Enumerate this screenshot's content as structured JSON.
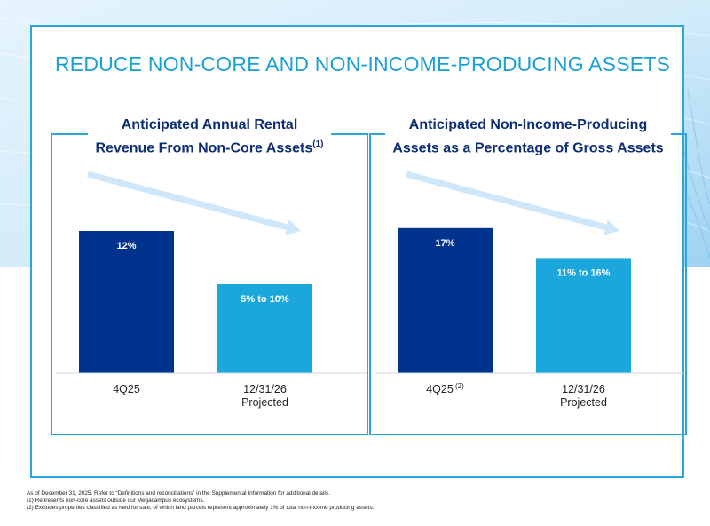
{
  "title": "REDUCE NON-CORE AND NON-INCOME-PRODUCING ASSETS",
  "colors": {
    "accent": "#29a8d8",
    "dark_bar": "#00338d",
    "light_bar": "#1ba6dc",
    "arrow": "#cfe7f8",
    "heading": "#0f2f74"
  },
  "chart_data": [
    {
      "type": "bar",
      "title_lines": [
        "Anticipated Annual Rental",
        "Revenue From Non-Core Assets"
      ],
      "title_superscript": "(1)",
      "categories": [
        {
          "lines": [
            "4Q25"
          ],
          "superscript": ""
        },
        {
          "lines": [
            "12/31/26",
            "Projected"
          ],
          "superscript": ""
        }
      ],
      "values": [
        12,
        7.5
      ],
      "data_labels": [
        "12%",
        "5% to 10%"
      ],
      "ylim": [
        0,
        18
      ],
      "grid": false,
      "trend_arrow": "down"
    },
    {
      "type": "bar",
      "title_lines": [
        "Anticipated Non-Income-Producing",
        "Assets as a Percentage of Gross Assets"
      ],
      "title_superscript": "",
      "categories": [
        {
          "lines": [
            "4Q25"
          ],
          "superscript": "(2)"
        },
        {
          "lines": [
            "12/31/26",
            "Projected"
          ],
          "superscript": ""
        }
      ],
      "values": [
        17,
        13.5
      ],
      "data_labels": [
        "17%",
        "11% to 16%"
      ],
      "ylim": [
        0,
        25
      ],
      "grid": false,
      "trend_arrow": "down"
    }
  ],
  "footnotes": [
    "As of December 31, 2025. Refer to “Definitions and reconciliations” in the Supplemental Information for additional details.",
    "(1)   Represents non-core assets outside our Megacampus ecosystems.",
    "(2)   Excludes properties classified as held for sale, of which land parcels represent approximately 1% of total non-income producing assets."
  ]
}
